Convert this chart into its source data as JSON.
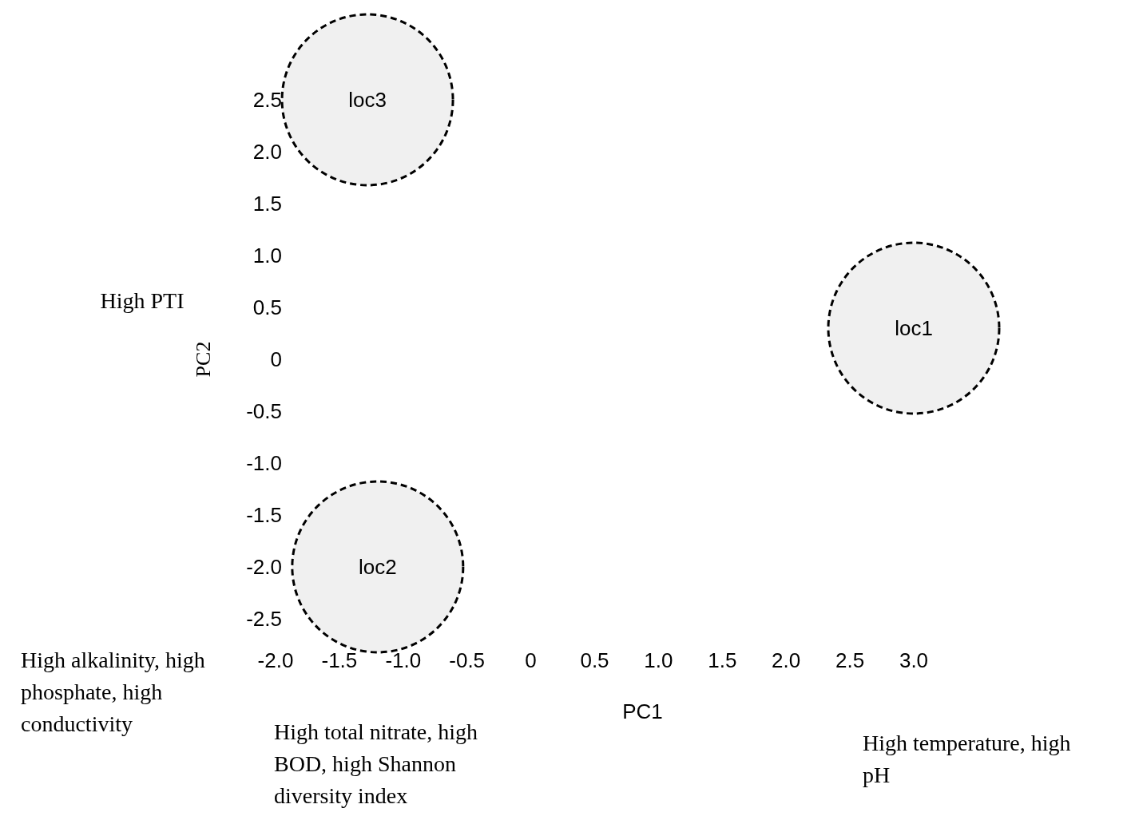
{
  "chart_data": {
    "type": "bubble",
    "xlabel": "PC1",
    "ylabel": "PC2",
    "x": [
      3.0,
      -1.2,
      -1.28
    ],
    "values": [
      0.3,
      -2.0,
      2.5
    ],
    "sizes": [
      1,
      1,
      1
    ],
    "color": "#000000",
    "line_style": "dashed",
    "xlim": [
      -2,
      3
    ],
    "ylim": [
      -2.5,
      2.5
    ],
    "xticks": [
      {
        "value": -2,
        "label": "-2.0"
      },
      {
        "value": -1.5,
        "label": "-1.5"
      },
      {
        "value": -1,
        "label": "-1.0"
      },
      {
        "value": -0.5,
        "label": "-0.5"
      },
      0,
      0.5,
      {
        "value": 1,
        "label": "1.0"
      },
      1.5,
      {
        "value": 2,
        "label": "2.0"
      },
      2.5,
      {
        "value": 3,
        "label": "3.0"
      }
    ],
    "yticks": [
      {
        "value": -2.5,
        "label": "-2.5"
      },
      {
        "value": -2,
        "label": "-2.0"
      },
      {
        "value": -1.5,
        "label": "-1.5"
      },
      {
        "value": -1,
        "label": "-1.0"
      },
      {
        "value": -0.5,
        "label": "-0.5"
      },
      0,
      0.5,
      {
        "value": 1,
        "label": "1.0"
      },
      1.5,
      {
        "value": 2,
        "label": "2.0"
      },
      2.5
    ],
    "annotations": [
      {
        "text": "loc1",
        "x": 3.0,
        "y": 0.3
      },
      {
        "text": "loc2",
        "x": -1.2,
        "y": -2.0
      },
      {
        "text": "loc3",
        "x": -1.28,
        "y": 2.5
      },
      "High PTI",
      "High alkalinity, high phosphate, high conductivity",
      "High total nitrate, high BOD, high Shannon diversity index",
      "High temperature, high pH"
    ]
  }
}
